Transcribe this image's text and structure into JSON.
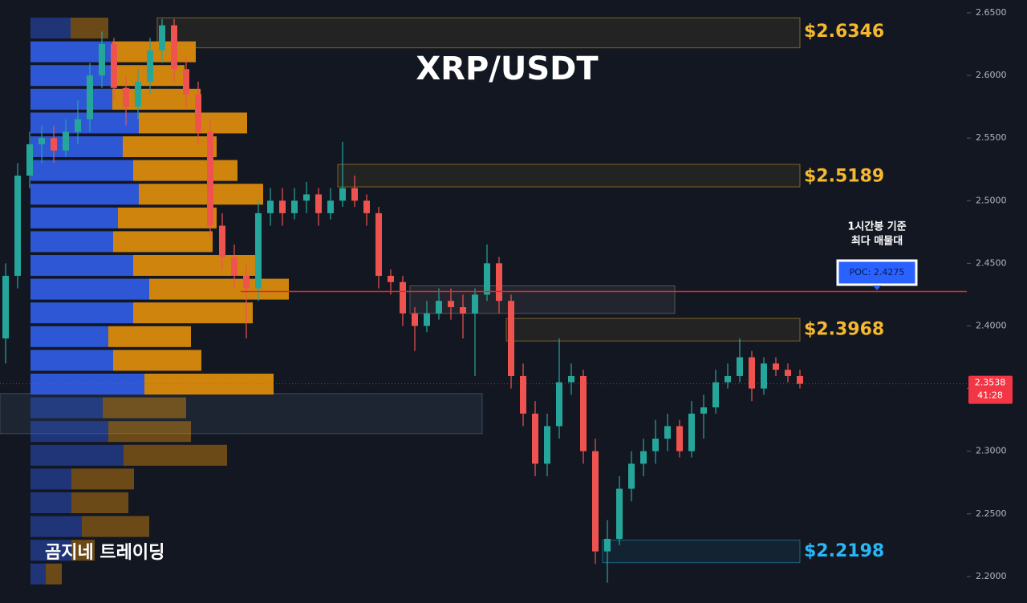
{
  "chart_data": {
    "type": "candlestick",
    "title": "XRP/USDT",
    "watermark": "곰지네 트레이딩",
    "ylim": [
      2.1788,
      2.6602
    ],
    "yticks": [
      {
        "value": 2.65,
        "label": "2.6500"
      },
      {
        "value": 2.6,
        "label": "2.6000"
      },
      {
        "value": 2.55,
        "label": "2.5500"
      },
      {
        "value": 2.5,
        "label": "2.5000"
      },
      {
        "value": 2.45,
        "label": "2.4500"
      },
      {
        "value": 2.4,
        "label": "2.4000"
      },
      {
        "value": 2.35,
        "label": "2.3500"
      },
      {
        "value": 2.3,
        "label": "2.3000"
      },
      {
        "value": 2.25,
        "label": "2.2500"
      },
      {
        "value": 2.2,
        "label": "2.2000"
      }
    ],
    "up_color": "#26a69a",
    "down_color": "#ef5350",
    "values": [
      [
        2.39,
        2.45,
        2.37,
        2.44
      ],
      [
        2.44,
        2.53,
        2.43,
        2.52
      ],
      [
        2.52,
        2.555,
        2.51,
        2.545
      ],
      [
        2.545,
        2.56,
        2.53,
        2.55
      ],
      [
        2.55,
        2.56,
        2.53,
        2.54
      ],
      [
        2.54,
        2.565,
        2.535,
        2.555
      ],
      [
        2.555,
        2.58,
        2.545,
        2.565
      ],
      [
        2.565,
        2.61,
        2.555,
        2.6
      ],
      [
        2.6,
        2.635,
        2.59,
        2.625
      ],
      [
        2.625,
        2.63,
        2.58,
        2.59
      ],
      [
        2.59,
        2.6,
        2.56,
        2.575
      ],
      [
        2.575,
        2.605,
        2.565,
        2.595
      ],
      [
        2.595,
        2.63,
        2.585,
        2.62
      ],
      [
        2.62,
        2.645,
        2.61,
        2.64
      ],
      [
        2.64,
        2.645,
        2.595,
        2.605
      ],
      [
        2.605,
        2.615,
        2.575,
        2.585
      ],
      [
        2.585,
        2.595,
        2.545,
        2.555
      ],
      [
        2.555,
        2.565,
        2.47,
        2.48
      ],
      [
        2.48,
        2.49,
        2.445,
        2.455
      ],
      [
        2.455,
        2.465,
        2.43,
        2.44
      ],
      [
        2.44,
        2.45,
        2.39,
        2.43
      ],
      [
        2.43,
        2.5,
        2.42,
        2.49
      ],
      [
        2.49,
        2.51,
        2.48,
        2.5
      ],
      [
        2.5,
        2.51,
        2.48,
        2.49
      ],
      [
        2.49,
        2.51,
        2.485,
        2.5
      ],
      [
        2.5,
        2.515,
        2.49,
        2.505
      ],
      [
        2.505,
        2.51,
        2.48,
        2.49
      ],
      [
        2.49,
        2.51,
        2.485,
        2.5
      ],
      [
        2.5,
        2.547,
        2.495,
        2.51
      ],
      [
        2.51,
        2.52,
        2.495,
        2.5
      ],
      [
        2.5,
        2.505,
        2.48,
        2.49
      ],
      [
        2.49,
        2.495,
        2.43,
        2.44
      ],
      [
        2.44,
        2.445,
        2.425,
        2.435
      ],
      [
        2.435,
        2.44,
        2.4,
        2.41
      ],
      [
        2.41,
        2.415,
        2.38,
        2.4
      ],
      [
        2.4,
        2.42,
        2.395,
        2.41
      ],
      [
        2.41,
        2.43,
        2.405,
        2.42
      ],
      [
        2.42,
        2.43,
        2.405,
        2.415
      ],
      [
        2.415,
        2.425,
        2.39,
        2.41
      ],
      [
        2.41,
        2.43,
        2.36,
        2.425
      ],
      [
        2.425,
        2.465,
        2.42,
        2.45
      ],
      [
        2.45,
        2.455,
        2.41,
        2.42
      ],
      [
        2.42,
        2.425,
        2.35,
        2.36
      ],
      [
        2.36,
        2.37,
        2.32,
        2.33
      ],
      [
        2.33,
        2.34,
        2.28,
        2.29
      ],
      [
        2.29,
        2.33,
        2.28,
        2.32
      ],
      [
        2.32,
        2.39,
        2.31,
        2.355
      ],
      [
        2.355,
        2.37,
        2.345,
        2.36
      ],
      [
        2.36,
        2.365,
        2.29,
        2.3
      ],
      [
        2.3,
        2.31,
        2.21,
        2.22
      ],
      [
        2.22,
        2.245,
        2.195,
        2.23
      ],
      [
        2.23,
        2.28,
        2.225,
        2.27
      ],
      [
        2.27,
        2.3,
        2.26,
        2.29
      ],
      [
        2.29,
        2.31,
        2.28,
        2.3
      ],
      [
        2.3,
        2.325,
        2.29,
        2.31
      ],
      [
        2.31,
        2.33,
        2.3,
        2.32
      ],
      [
        2.32,
        2.325,
        2.295,
        2.3
      ],
      [
        2.3,
        2.34,
        2.295,
        2.33
      ],
      [
        2.33,
        2.345,
        2.31,
        2.335
      ],
      [
        2.335,
        2.365,
        2.33,
        2.355
      ],
      [
        2.355,
        2.37,
        2.35,
        2.36
      ],
      [
        2.36,
        2.39,
        2.355,
        2.375
      ],
      [
        2.375,
        2.38,
        2.34,
        2.35
      ],
      [
        2.35,
        2.375,
        2.345,
        2.37
      ],
      [
        2.37,
        2.375,
        2.36,
        2.365
      ],
      [
        2.365,
        2.37,
        2.355,
        2.36
      ],
      [
        2.36,
        2.365,
        2.35,
        2.3538
      ]
    ],
    "last_price": {
      "value": 2.3538,
      "label": "2.3538",
      "countdown": "41:28",
      "color": "#f23645"
    },
    "poc": {
      "value": 2.4275,
      "label": "POC: 2.4275",
      "note": [
        "1시간봉 기준",
        "최다 매물대"
      ],
      "color": "#d32f2f"
    },
    "levels": [
      {
        "value": 2.6346,
        "label": "$2.6346",
        "top": 2.646,
        "bottom": 2.622,
        "start": 13,
        "color": "#f5b82e"
      },
      {
        "value": 2.5189,
        "label": "$2.5189",
        "top": 2.529,
        "bottom": 2.511,
        "start": 28,
        "color": "#f5b82e"
      },
      {
        "value": 2.3968,
        "label": "$2.3968",
        "top": 2.406,
        "bottom": 2.388,
        "start": 42,
        "color": "#f5b82e"
      },
      {
        "value": 2.2198,
        "label": "$2.2198",
        "top": 2.229,
        "bottom": 2.211,
        "start": 50,
        "color": "#29b6f6"
      }
    ],
    "boxes": [
      {
        "top": 2.432,
        "bottom": 2.41,
        "start": 34,
        "end": 56
      },
      {
        "top": 2.346,
        "bottom": 2.314,
        "start": 0,
        "end": 40
      }
    ],
    "volume_profile": {
      "buy": [
        50,
        102,
        102,
        102,
        135,
        115,
        128,
        135,
        109,
        103,
        128,
        148,
        128,
        97,
        103,
        142,
        90,
        97,
        116,
        51,
        51,
        64,
        51,
        19
      ],
      "sell": [
        47,
        104,
        90,
        110,
        135,
        117,
        130,
        155,
        123,
        124,
        154,
        174,
        149,
        103,
        110,
        161,
        104,
        103,
        129,
        78,
        71,
        84,
        29,
        20
      ],
      "value_area": [
        1,
        15
      ],
      "buy_color": "#2f5be0",
      "sell_color": "#d98a0d"
    }
  }
}
